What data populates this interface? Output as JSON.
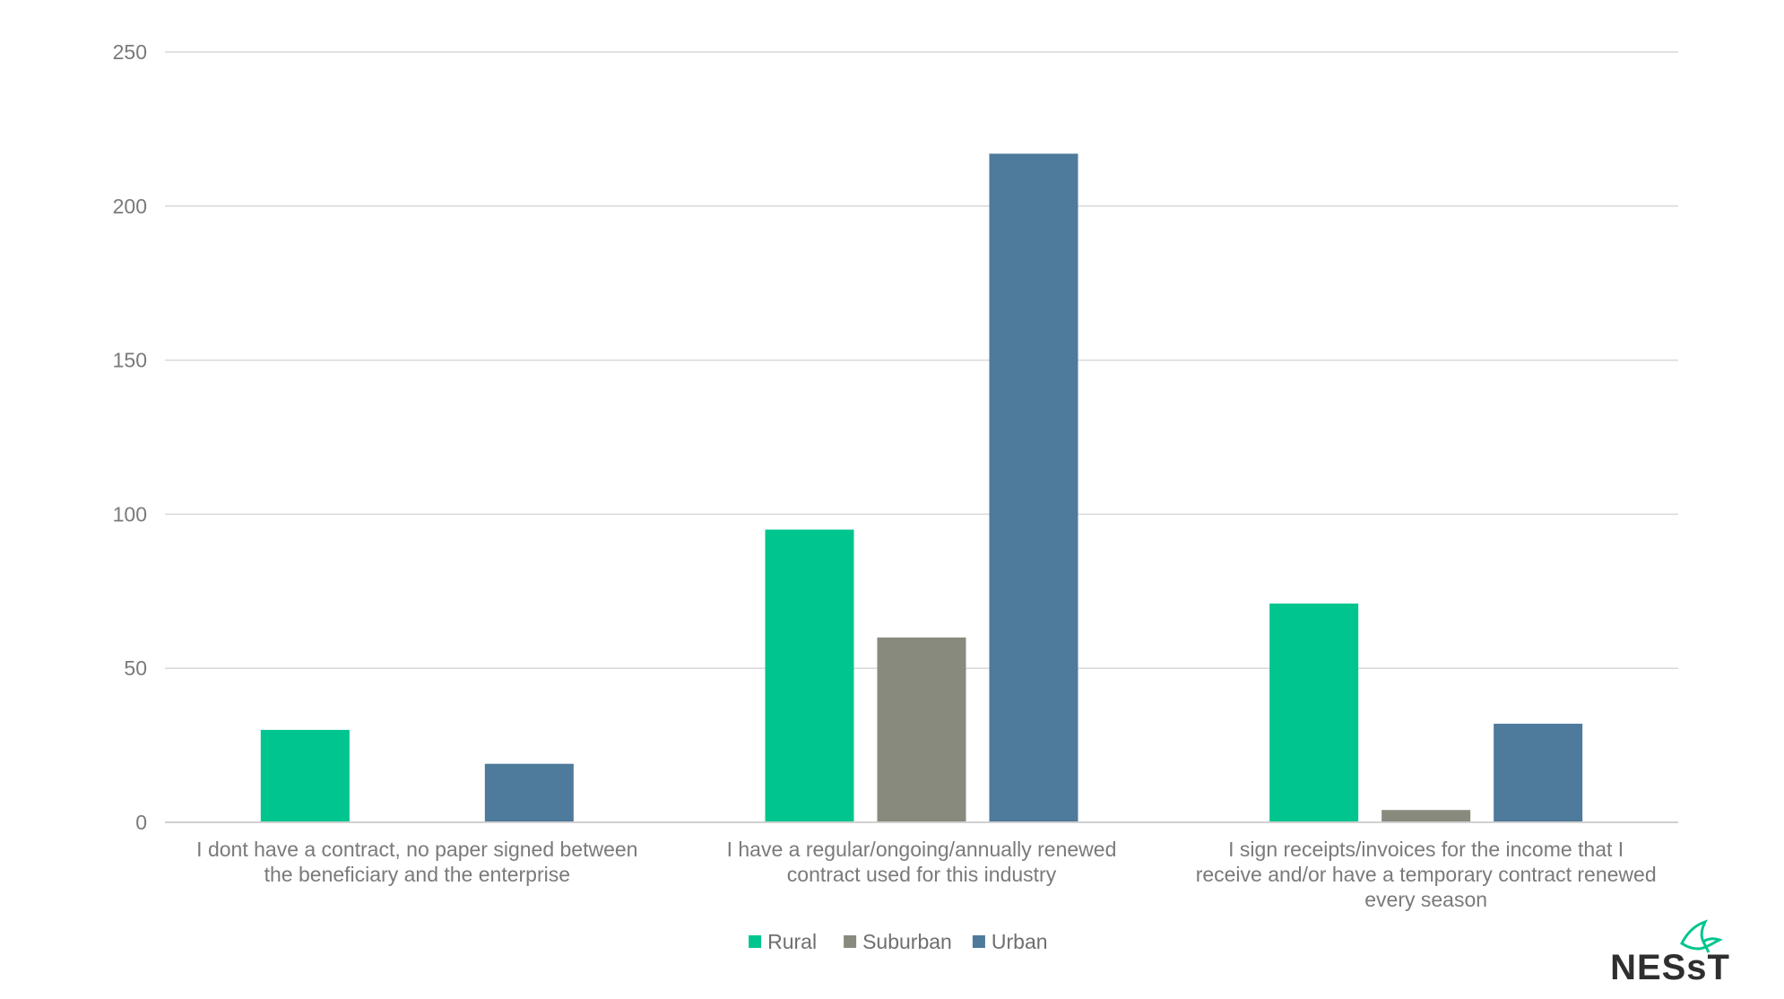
{
  "chart_data": {
    "type": "bar",
    "title": "",
    "xlabel": "",
    "ylabel": "",
    "ylim": [
      0,
      250
    ],
    "yticks": [
      0,
      50,
      100,
      150,
      200,
      250
    ],
    "grid": true,
    "legend_position": "bottom-center",
    "categories": [
      [
        "I dont have a contract, no paper signed between",
        "the beneficiary and the enterprise"
      ],
      [
        "I have a regular/ongoing/annually renewed",
        "contract used for this industry"
      ],
      [
        "I sign receipts/invoices for the income that I",
        "receive and/or have a temporary contract renewed",
        "every season"
      ]
    ],
    "series": [
      {
        "name": "Rural",
        "color": "#00c58e",
        "values": [
          30,
          95,
          71
        ]
      },
      {
        "name": "Suburban",
        "color": "#888a7e",
        "values": [
          0,
          60,
          4
        ]
      },
      {
        "name": "Urban",
        "color": "#4e7a9c",
        "values": [
          19,
          217,
          32
        ]
      }
    ]
  },
  "logo": {
    "text": "NESsT",
    "icon": "bird-icon",
    "color": "#2f2f2f",
    "accent": "#00c58e"
  }
}
